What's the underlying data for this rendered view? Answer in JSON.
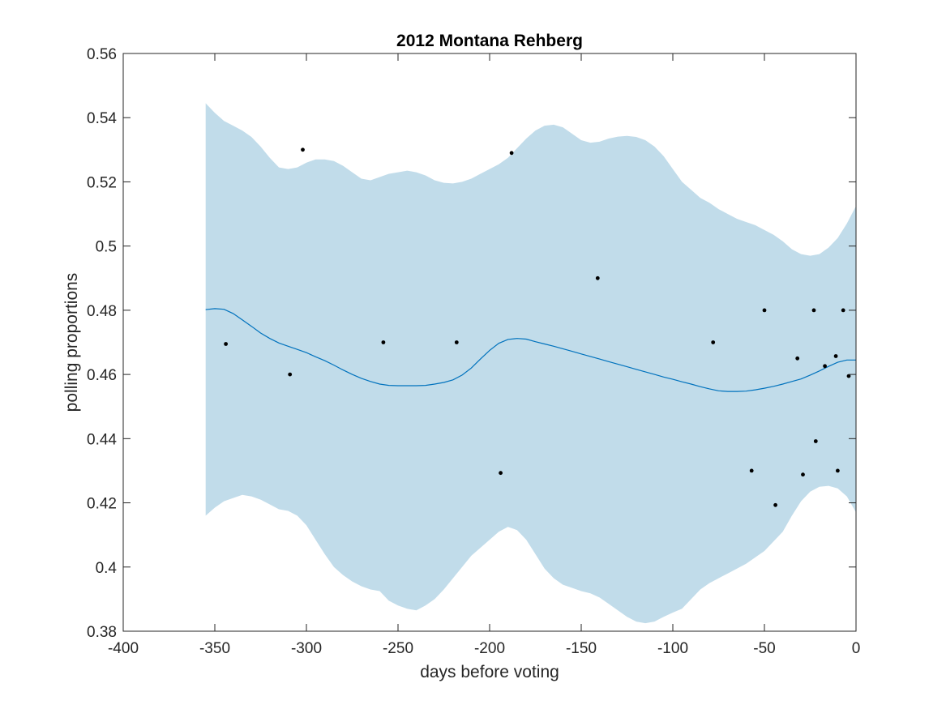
{
  "chart_data": {
    "type": "line",
    "title": "2012 Montana Rehberg",
    "xlabel": "days before voting",
    "ylabel": "polling proportions",
    "xlim": [
      -400,
      0
    ],
    "ylim": [
      0.38,
      0.56
    ],
    "xticks": [
      -400,
      -350,
      -300,
      -250,
      -200,
      -150,
      -100,
      -50,
      0
    ],
    "xtick_labels": [
      "-400",
      "-350",
      "-300",
      "-250",
      "-200",
      "-150",
      "-100",
      "-50",
      "0"
    ],
    "yticks": [
      0.38,
      0.4,
      0.42,
      0.44,
      0.46,
      0.48,
      0.5,
      0.52,
      0.54,
      0.56
    ],
    "ytick_labels": [
      "0.38",
      "0.4",
      "0.42",
      "0.44",
      "0.46",
      "0.48",
      "0.5",
      "0.52",
      "0.54",
      "0.56"
    ],
    "grid": false,
    "colors": {
      "band": "#c1dcea",
      "line": "#0072bd",
      "points": "#000000",
      "axes": "#262626"
    },
    "series": [
      {
        "kind": "band",
        "x": [
          -355,
          -350,
          -345,
          -340,
          -335,
          -330,
          -325,
          -320,
          -315,
          -310,
          -305,
          -300,
          -295,
          -290,
          -285,
          -280,
          -275,
          -270,
          -265,
          -260,
          -255,
          -250,
          -245,
          -240,
          -235,
          -230,
          -225,
          -220,
          -215,
          -210,
          -205,
          -200,
          -195,
          -190,
          -185,
          -180,
          -175,
          -170,
          -165,
          -160,
          -155,
          -150,
          -145,
          -140,
          -135,
          -130,
          -125,
          -120,
          -115,
          -110,
          -105,
          -100,
          -95,
          -90,
          -85,
          -80,
          -75,
          -70,
          -65,
          -60,
          -55,
          -50,
          -45,
          -40,
          -35,
          -30,
          -25,
          -20,
          -15,
          -10,
          -5,
          0
        ],
        "upper": [
          0.5445,
          0.5415,
          0.539,
          0.5375,
          0.536,
          0.534,
          0.531,
          0.5275,
          0.5245,
          0.524,
          0.5245,
          0.526,
          0.527,
          0.527,
          0.5265,
          0.525,
          0.523,
          0.521,
          0.5205,
          0.5215,
          0.5225,
          0.523,
          0.5235,
          0.523,
          0.522,
          0.5205,
          0.5197,
          0.5195,
          0.52,
          0.521,
          0.5225,
          0.524,
          0.5255,
          0.5275,
          0.5305,
          0.5335,
          0.536,
          0.5375,
          0.5378,
          0.537,
          0.535,
          0.533,
          0.5322,
          0.5325,
          0.5335,
          0.5341,
          0.5343,
          0.534,
          0.533,
          0.531,
          0.528,
          0.524,
          0.52,
          0.5175,
          0.515,
          0.5135,
          0.5115,
          0.51,
          0.5085,
          0.5075,
          0.5065,
          0.505,
          0.5035,
          0.5015,
          0.499,
          0.4975,
          0.497,
          0.4975,
          0.4995,
          0.5025,
          0.507,
          0.5125
        ],
        "lower": [
          0.416,
          0.4185,
          0.4205,
          0.4215,
          0.4225,
          0.422,
          0.421,
          0.4195,
          0.418,
          0.4175,
          0.416,
          0.413,
          0.4085,
          0.404,
          0.4,
          0.3975,
          0.3955,
          0.394,
          0.393,
          0.3925,
          0.3895,
          0.388,
          0.387,
          0.3865,
          0.388,
          0.39,
          0.393,
          0.3965,
          0.4,
          0.4035,
          0.406,
          0.4085,
          0.411,
          0.4125,
          0.4115,
          0.4085,
          0.404,
          0.3995,
          0.3965,
          0.3945,
          0.3935,
          0.3925,
          0.3918,
          0.3905,
          0.3885,
          0.3865,
          0.3845,
          0.383,
          0.3825,
          0.383,
          0.3845,
          0.3858,
          0.387,
          0.39,
          0.393,
          0.395,
          0.3965,
          0.398,
          0.3995,
          0.401,
          0.403,
          0.405,
          0.408,
          0.411,
          0.416,
          0.4205,
          0.4235,
          0.425,
          0.4253,
          0.4245,
          0.422,
          0.417
        ]
      },
      {
        "kind": "line",
        "x": [
          -355,
          -350,
          -345,
          -340,
          -335,
          -330,
          -325,
          -320,
          -315,
          -310,
          -305,
          -300,
          -295,
          -290,
          -285,
          -280,
          -275,
          -270,
          -265,
          -260,
          -255,
          -250,
          -245,
          -240,
          -235,
          -230,
          -225,
          -220,
          -215,
          -210,
          -205,
          -200,
          -195,
          -190,
          -185,
          -180,
          -175,
          -170,
          -165,
          -160,
          -155,
          -150,
          -145,
          -140,
          -135,
          -130,
          -125,
          -120,
          -115,
          -110,
          -105,
          -100,
          -95,
          -90,
          -85,
          -80,
          -75,
          -70,
          -65,
          -60,
          -55,
          -50,
          -45,
          -40,
          -35,
          -30,
          -25,
          -20,
          -15,
          -10,
          -5,
          0
        ],
        "y": [
          0.4802,
          0.4805,
          0.4803,
          0.479,
          0.477,
          0.475,
          0.4729,
          0.4712,
          0.4698,
          0.4688,
          0.4678,
          0.4668,
          0.4655,
          0.4643,
          0.4629,
          0.4614,
          0.46,
          0.4588,
          0.4578,
          0.457,
          0.4566,
          0.4565,
          0.4565,
          0.4565,
          0.4566,
          0.457,
          0.4575,
          0.4583,
          0.4598,
          0.462,
          0.4648,
          0.4675,
          0.4697,
          0.4709,
          0.4712,
          0.471,
          0.4702,
          0.4695,
          0.4688,
          0.468,
          0.4672,
          0.4664,
          0.4656,
          0.4648,
          0.464,
          0.4632,
          0.4624,
          0.4616,
          0.4608,
          0.46,
          0.4592,
          0.4585,
          0.4577,
          0.457,
          0.4562,
          0.4555,
          0.4549,
          0.4547,
          0.4547,
          0.4548,
          0.4552,
          0.4557,
          0.4563,
          0.457,
          0.4578,
          0.4586,
          0.4598,
          0.4611,
          0.4625,
          0.4638,
          0.4645,
          0.4645
        ]
      },
      {
        "kind": "points",
        "x": [
          -344,
          -309,
          -302,
          -258,
          -218,
          -194,
          -188,
          -141,
          -78,
          -57,
          -50,
          -44,
          -32,
          -29,
          -23,
          -22,
          -17,
          -11,
          -10,
          -7,
          -4
        ],
        "y": [
          0.4695,
          0.46,
          0.53,
          0.47,
          0.47,
          0.4293,
          0.529,
          0.49,
          0.47,
          0.43,
          0.48,
          0.4193,
          0.465,
          0.4288,
          0.48,
          0.4392,
          0.4626,
          0.4657,
          0.43,
          0.48,
          0.4595
        ]
      }
    ]
  }
}
